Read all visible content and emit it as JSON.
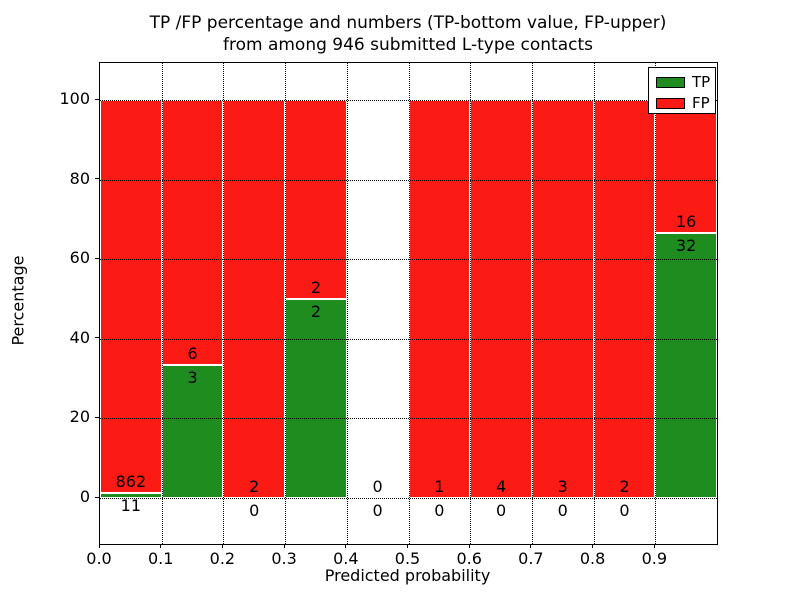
{
  "figure": {
    "title_line1": "TP /FP percentage and numbers (TP-bottom value, FP-upper)",
    "title_line2": "from among 946 submitted L-type contacts",
    "xlabel": "Predicted probability",
    "ylabel": "Percentage"
  },
  "legend": {
    "items": [
      {
        "label": "TP",
        "color": "#1E8C1E"
      },
      {
        "label": "FP",
        "color": "#FB1A14"
      }
    ]
  },
  "chart_data": {
    "type": "bar",
    "stacked": true,
    "title": "TP /FP percentage and numbers (TP-bottom value, FP-upper) from among 946 submitted L-type contacts",
    "xlabel": "Predicted probability",
    "ylabel": "Percentage",
    "xlim": [
      0.0,
      1.0
    ],
    "ylim": [
      -11.5,
      109.5
    ],
    "yticks": [
      "0",
      "20",
      "40",
      "60",
      "80",
      "100"
    ],
    "ytick_values": [
      0,
      20,
      40,
      60,
      80,
      100
    ],
    "xticks": [
      "0.0",
      "0.1",
      "0.2",
      "0.3",
      "0.4",
      "0.5",
      "0.6",
      "0.7",
      "0.8",
      "0.9"
    ],
    "grid": "dotted black, drawn above bars",
    "legend_position": "upper right",
    "series_colors": {
      "tp": "#1E8C1E",
      "fp": "#FB1A14"
    },
    "bar_edge_color": "#FFFFFF",
    "bins": [
      {
        "range": "0.0-0.1",
        "tp": 11,
        "fp": 862,
        "tp_pct": 1.26,
        "fp_pct": 98.74
      },
      {
        "range": "0.1-0.2",
        "tp": 3,
        "fp": 6,
        "tp_pct": 33.33,
        "fp_pct": 66.67
      },
      {
        "range": "0.2-0.3",
        "tp": 0,
        "fp": 2,
        "tp_pct": 0,
        "fp_pct": 100
      },
      {
        "range": "0.3-0.4",
        "tp": 2,
        "fp": 2,
        "tp_pct": 50,
        "fp_pct": 50
      },
      {
        "range": "0.4-0.5",
        "tp": 0,
        "fp": 0,
        "tp_pct": 0,
        "fp_pct": 0
      },
      {
        "range": "0.5-0.6",
        "tp": 0,
        "fp": 1,
        "tp_pct": 0,
        "fp_pct": 100
      },
      {
        "range": "0.6-0.7",
        "tp": 0,
        "fp": 4,
        "tp_pct": 0,
        "fp_pct": 100
      },
      {
        "range": "0.7-0.8",
        "tp": 0,
        "fp": 3,
        "tp_pct": 0,
        "fp_pct": 100
      },
      {
        "range": "0.8-0.9",
        "tp": 0,
        "fp": 2,
        "tp_pct": 0,
        "fp_pct": 100
      },
      {
        "range": "0.9-1.0",
        "tp": 32,
        "fp": 16,
        "tp_pct": 66.67,
        "fp_pct": 33.33
      }
    ]
  }
}
